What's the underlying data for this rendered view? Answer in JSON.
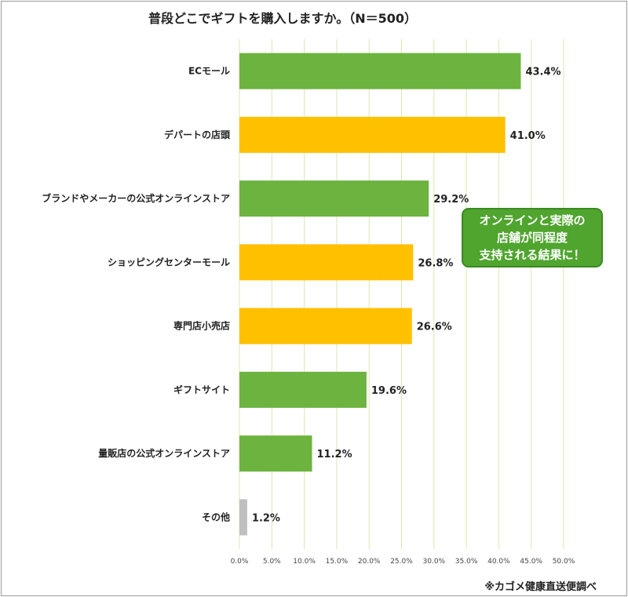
{
  "chart_data": {
    "type": "bar",
    "orientation": "horizontal",
    "title": "普段どこでギフトを購入しますか。（N＝500）",
    "categories": [
      "ECモール",
      "デパートの店頭",
      "ブランドやメーカーの公式オンラインストア",
      "ショッピングセンターモール",
      "専門店小売店",
      "ギフトサイト",
      "量販店の公式オンラインストア",
      "その他"
    ],
    "values": [
      43.4,
      41.0,
      29.2,
      26.8,
      26.6,
      19.6,
      11.2,
      1.2
    ],
    "value_labels": [
      "43.4%",
      "41.0%",
      "29.2%",
      "26.8%",
      "26.6%",
      "19.6%",
      "11.2%",
      "1.2%"
    ],
    "bar_colors": [
      "#6db33f",
      "#ffc000",
      "#6db33f",
      "#ffc000",
      "#ffc000",
      "#6db33f",
      "#6db33f",
      "#bfbfbf"
    ],
    "xlim": [
      0,
      50
    ],
    "x_ticks": [
      "0.0%",
      "5.0%",
      "10.0%",
      "15.0%",
      "20.0%",
      "25.0%",
      "30.0%",
      "35.0%",
      "40.0%",
      "45.0%",
      "50.0%"
    ],
    "grid": true,
    "grid_color": "#d9e8b0",
    "xlabel": "",
    "ylabel": ""
  },
  "annotation": {
    "lines": [
      "オンラインと実際の",
      "店舗が同程度",
      "支持される結果に！"
    ],
    "color": "#4fa52e"
  },
  "source_note": "※カゴメ健康直送便調べ"
}
